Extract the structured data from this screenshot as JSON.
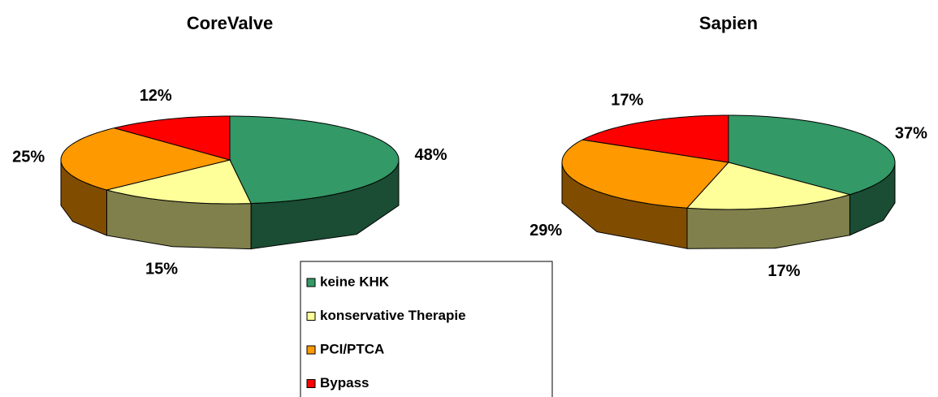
{
  "chart_data": [
    {
      "type": "pie3d",
      "title": "CoreValve",
      "categories": [
        "keine KHK",
        "konservative Therapie",
        "PCI/PTCA",
        "Bypass"
      ],
      "values": [
        48,
        15,
        25,
        12
      ],
      "value_labels": [
        "48%",
        "15%",
        "25%",
        "12%"
      ],
      "colors": [
        "#339966",
        "#ffff99",
        "#ff9900",
        "#ff0000"
      ]
    },
    {
      "type": "pie3d",
      "title": "Sapien",
      "categories": [
        "keine KHK",
        "konservative Therapie",
        "PCI/PTCA",
        "Bypass"
      ],
      "values": [
        37,
        17,
        29,
        17
      ],
      "value_labels": [
        "37%",
        "17%",
        "29%",
        "17%"
      ],
      "colors": [
        "#339966",
        "#ffff99",
        "#ff9900",
        "#ff0000"
      ]
    }
  ]
}
